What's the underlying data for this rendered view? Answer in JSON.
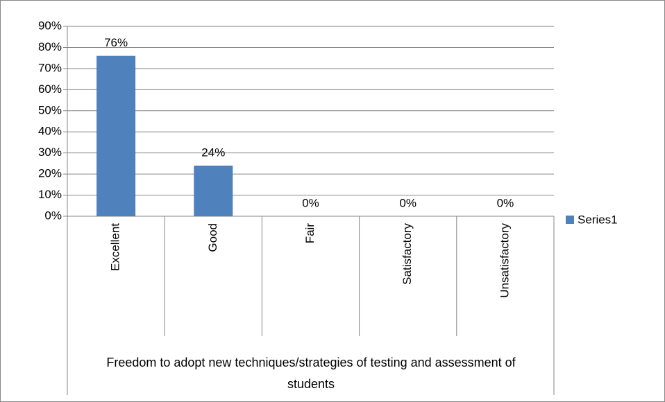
{
  "chart_data": {
    "type": "bar",
    "x_label": "Freedom to adopt new techniques/strategies of testing and assessment of students",
    "categories": [
      "Excellent",
      "Good",
      "Fair",
      "Satisfactory",
      "Unsatisfactory"
    ],
    "series": [
      {
        "name": "Series1",
        "color": "#4f81bd",
        "values": [
          76,
          24,
          0,
          0,
          0
        ],
        "value_labels": [
          "76%",
          "24%",
          "0%",
          "0%",
          "0%"
        ]
      }
    ],
    "ylim": [
      0,
      90
    ],
    "yticks": [
      {
        "value": 0,
        "label": "0%"
      },
      {
        "value": 10,
        "label": "10%"
      },
      {
        "value": 20,
        "label": "20%"
      },
      {
        "value": 30,
        "label": "30%"
      },
      {
        "value": 40,
        "label": "40%"
      },
      {
        "value": 50,
        "label": "50%"
      },
      {
        "value": 60,
        "label": "60%"
      },
      {
        "value": 70,
        "label": "70%"
      },
      {
        "value": 80,
        "label": "80%"
      },
      {
        "value": 90,
        "label": "90%"
      }
    ],
    "grid": true,
    "legend": "right"
  }
}
